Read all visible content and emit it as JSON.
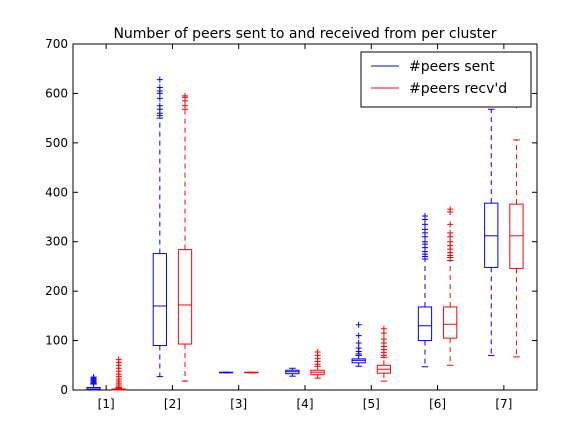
{
  "chart_data": {
    "type": "box",
    "title": "Number of peers sent to and received from per cluster",
    "xlabel": "",
    "ylabel": "",
    "ylim": [
      0,
      700
    ],
    "yticks": [
      0,
      100,
      200,
      300,
      400,
      500,
      600,
      700
    ],
    "grid": false,
    "legend_placement": "top-right",
    "categories": [
      "[1]",
      "[2]",
      "[3]",
      "[4]",
      "[5]",
      "[6]",
      "[7]"
    ],
    "series": [
      {
        "name": "#peers sent",
        "color": "#0000ff",
        "boxes": [
          {
            "whislo": 0,
            "q1": 1,
            "med": 2,
            "q3": 5,
            "whishi": 12,
            "fliers": [
              14,
              16,
              18,
              20,
              22,
              24,
              26
            ]
          },
          {
            "whislo": 27,
            "q1": 90,
            "med": 170,
            "q3": 276,
            "whishi": 550,
            "fliers": [
              555,
              560,
              568,
              575,
              590,
              600,
              605,
              612,
              628
            ]
          },
          {
            "whislo": 35,
            "q1": 35,
            "med": 35,
            "q3": 36,
            "whishi": 36,
            "fliers": []
          },
          {
            "whislo": 28,
            "q1": 33,
            "med": 37,
            "q3": 40,
            "whishi": 44,
            "fliers": []
          },
          {
            "whislo": 48,
            "q1": 55,
            "med": 60,
            "q3": 63,
            "whishi": 70,
            "fliers": [
              73,
              78,
              85,
              95,
              110,
              132
            ]
          },
          {
            "whislo": 47,
            "q1": 100,
            "med": 130,
            "q3": 168,
            "whishi": 265,
            "fliers": [
              270,
              275,
              280,
              288,
              295,
              300,
              310,
              318,
              325,
              335,
              345,
              352
            ]
          },
          {
            "whislo": 70,
            "q1": 248,
            "med": 312,
            "q3": 378,
            "whishi": 568,
            "fliers": []
          }
        ]
      },
      {
        "name": "#peers recv'd",
        "color": "#ff0000",
        "boxes": [
          {
            "whislo": 0,
            "q1": 0,
            "med": 1,
            "q3": 2,
            "whishi": 4,
            "fliers": [
              6,
              10,
              14,
              18,
              22,
              27,
              32,
              38,
              44,
              50,
              56,
              62
            ]
          },
          {
            "whislo": 18,
            "q1": 93,
            "med": 172,
            "q3": 284,
            "whishi": 568,
            "fliers": [
              575,
              585,
              592,
              595
            ]
          },
          {
            "whislo": 35,
            "q1": 35,
            "med": 35,
            "q3": 36,
            "whishi": 36,
            "fliers": []
          },
          {
            "whislo": 24,
            "q1": 31,
            "med": 36,
            "q3": 40,
            "whishi": 48,
            "fliers": [
              52,
              58,
              64,
              70,
              77
            ]
          },
          {
            "whislo": 18,
            "q1": 34,
            "med": 42,
            "q3": 50,
            "whishi": 66,
            "fliers": [
              70,
              76,
              82,
              88,
              95,
              103,
              115,
              124
            ]
          },
          {
            "whislo": 50,
            "q1": 105,
            "med": 133,
            "q3": 168,
            "whishi": 262,
            "fliers": [
              268,
              272,
              278,
              285,
              292,
              300,
              310,
              318,
              335,
              360,
              366
            ]
          },
          {
            "whislo": 67,
            "q1": 246,
            "med": 312,
            "q3": 376,
            "whishi": 506,
            "fliers": [
              576
            ]
          }
        ]
      }
    ]
  }
}
